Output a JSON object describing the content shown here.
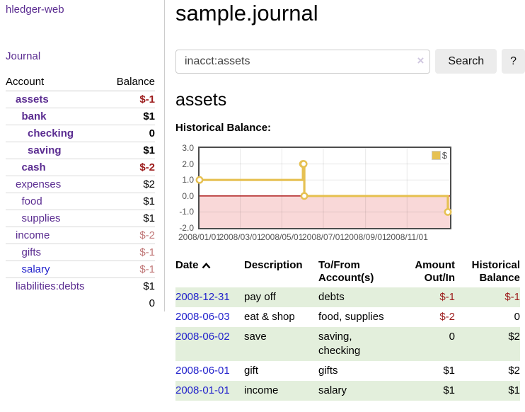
{
  "colors": {
    "link_purple": "#5b2d91",
    "link_blue": "#2323cc",
    "negative_strong": "#9c1b1b",
    "negative_soft": "#c17878",
    "row_stripe_green": "#e3efdc",
    "chart_gold": "#e6c153"
  },
  "sidebar": {
    "app_title": "hledger-web",
    "journal_label": "Journal",
    "accounts_table": {
      "account_header": "Account",
      "balance_header": "Balance",
      "rows": [
        {
          "name": "assets",
          "depth": 0,
          "bold": true,
          "link": "purple",
          "balance": "$-1",
          "tone": "neg-strong"
        },
        {
          "name": "bank",
          "depth": 1,
          "bold": true,
          "link": "purple",
          "balance": "$1",
          "tone": "plain"
        },
        {
          "name": "checking",
          "depth": 2,
          "bold": true,
          "link": "purple",
          "balance": "0",
          "tone": "plain"
        },
        {
          "name": "saving",
          "depth": 2,
          "bold": true,
          "link": "purple",
          "balance": "$1",
          "tone": "plain"
        },
        {
          "name": "cash",
          "depth": 1,
          "bold": true,
          "link": "purple",
          "balance": "$-2",
          "tone": "neg-strong"
        },
        {
          "name": "expenses",
          "depth": 0,
          "bold": false,
          "link": "purple",
          "balance": "$2",
          "tone": "plain"
        },
        {
          "name": "food",
          "depth": 1,
          "bold": false,
          "link": "purple",
          "balance": "$1",
          "tone": "plain"
        },
        {
          "name": "supplies",
          "depth": 1,
          "bold": false,
          "link": "purple",
          "balance": "$1",
          "tone": "plain"
        },
        {
          "name": "income",
          "depth": 0,
          "bold": false,
          "link": "purple",
          "balance": "$-2",
          "tone": "neg-soft"
        },
        {
          "name": "gifts",
          "depth": 1,
          "bold": false,
          "link": "purple",
          "balance": "$-1",
          "tone": "neg-soft"
        },
        {
          "name": "salary",
          "depth": 1,
          "bold": false,
          "link": "blue",
          "balance": "$-1",
          "tone": "neg-soft"
        },
        {
          "name": "liabilities:debts",
          "depth": 0,
          "bold": false,
          "link": "purple",
          "balance": "$1",
          "tone": "plain"
        }
      ],
      "total": "0"
    }
  },
  "main": {
    "title": "sample.journal",
    "search": {
      "value": "inacct:assets",
      "clear_icon": "×",
      "button_label": "Search",
      "help_label": "?"
    },
    "account_heading": "assets",
    "chart_label": "Historical Balance:",
    "register_table": {
      "headers": {
        "date": "Date",
        "description": "Description",
        "account": "To/From Account(s)",
        "amount": "Amount Out/In",
        "balance": "Historical Balance"
      },
      "rows": [
        {
          "date": "2008-12-31",
          "description": "pay off",
          "accounts": "debts",
          "amount": "$-1",
          "amount_negative": true,
          "balance": "$-1",
          "balance_negative": true
        },
        {
          "date": "2008-06-03",
          "description": "eat & shop",
          "accounts": "food, supplies",
          "amount": "$-2",
          "amount_negative": true,
          "balance": "0",
          "balance_negative": false
        },
        {
          "date": "2008-06-02",
          "description": "save",
          "accounts": "saving, checking",
          "amount": "0",
          "amount_negative": false,
          "balance": "$2",
          "balance_negative": false
        },
        {
          "date": "2008-06-01",
          "description": "gift",
          "accounts": "gifts",
          "amount": "$1",
          "amount_negative": false,
          "balance": "$2",
          "balance_negative": false
        },
        {
          "date": "2008-01-01",
          "description": "income",
          "accounts": "salary",
          "amount": "$1",
          "amount_negative": false,
          "balance": "$1",
          "balance_negative": false
        }
      ]
    }
  },
  "chart_data": {
    "type": "line",
    "title": "Historical Balance",
    "step": "after",
    "x_range": [
      "2008-01-01",
      "2008-12-31"
    ],
    "ylim": [
      -2,
      3
    ],
    "y_ticks": [
      "3.0",
      "2.0",
      "1.0",
      "0.0",
      "-1.0",
      "-2.0"
    ],
    "x_ticks": [
      "2008/01/01",
      "2008/03/01",
      "2008/05/01",
      "2008/07/01",
      "2008/09/01",
      "2008/11/01"
    ],
    "series": [
      {
        "name": "$",
        "color": "#e6c153",
        "points": [
          [
            "2008-01-01",
            1
          ],
          [
            "2008-06-01",
            2
          ],
          [
            "2008-06-02",
            2
          ],
          [
            "2008-06-03",
            0
          ],
          [
            "2008-12-31",
            -1
          ]
        ]
      }
    ],
    "legend": {
      "label": "$",
      "position": "top-right"
    },
    "grid": true,
    "negative_region_color": "#f9d8d8",
    "zero_line_color": "#a40000",
    "grid_color": "rgba(0,0,0,0.09)"
  }
}
